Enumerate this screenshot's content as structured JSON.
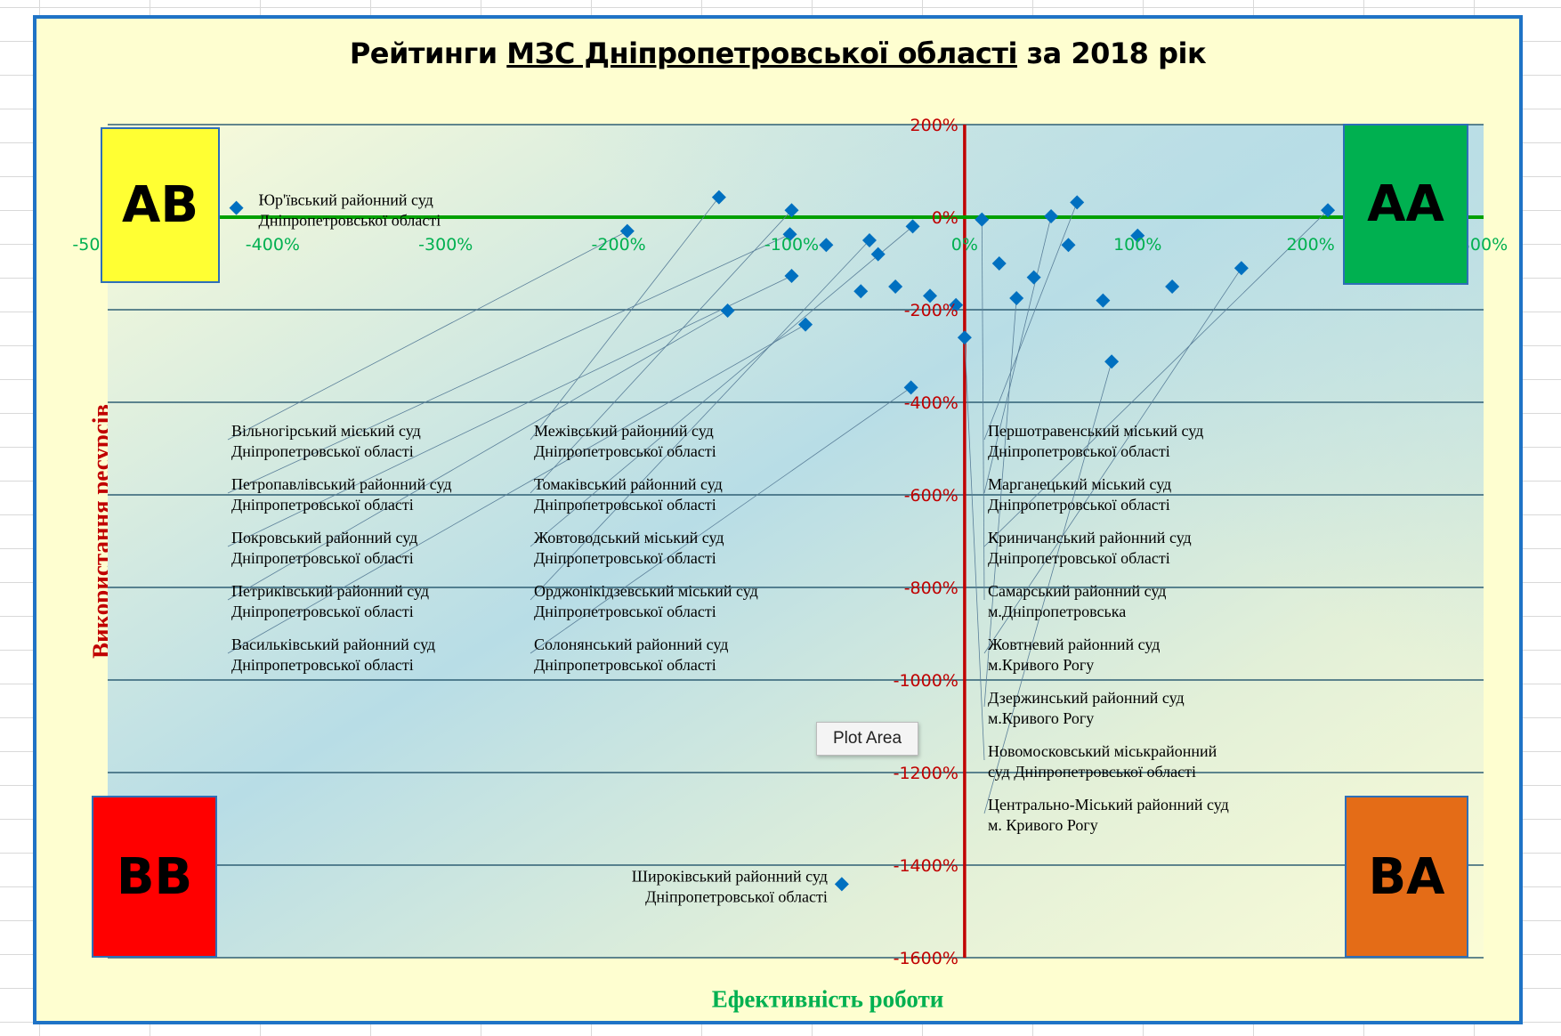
{
  "chart_data": {
    "type": "scatter",
    "title_parts": [
      "Рейтинги ",
      "МЗС Дніпропетровської  області",
      " за 2018 рік"
    ],
    "xlabel": "Ефективність роботи",
    "ylabel": "Використання ресурсів",
    "xlim": [
      -500,
      300
    ],
    "ylim": [
      -1600,
      200
    ],
    "x_ticks": [
      "-500%",
      "-400%",
      "-300%",
      "-200%",
      "-100%",
      "0%",
      "100%",
      "200%",
      "300%"
    ],
    "x_tick_values": [
      -500,
      -400,
      -300,
      -200,
      -100,
      0,
      100,
      200,
      300
    ],
    "y_ticks": [
      "200%",
      "0%",
      "-200%",
      "-400%",
      "-600%",
      "-800%",
      "-1000%",
      "-1200%",
      "-1400%",
      "-1600%"
    ],
    "y_tick_values": [
      200,
      0,
      -200,
      -400,
      -600,
      -800,
      -1000,
      -1200,
      -1400,
      -1600
    ],
    "grid": "horizontal",
    "colors": {
      "marker": "#0070c0",
      "x_axis": "#00a000",
      "y_axis": "#c00000",
      "x_tick": "#00b050",
      "y_tick": "#c00000"
    },
    "quadrants": [
      {
        "label": "AB",
        "color": "#ffff33"
      },
      {
        "label": "AA",
        "color": "#00b050"
      },
      {
        "label": "BB",
        "color": "#ff0000"
      },
      {
        "label": "BA",
        "color": "#e46c17"
      }
    ],
    "points": [
      {
        "x": -421,
        "y": 20,
        "label": [
          "Юр'ївський районний суд",
          "Дніпропетровської області"
        ]
      },
      {
        "x": -142,
        "y": 43,
        "label": [
          "Межівський районний суд",
          "Дніпропетровської області"
        ]
      },
      {
        "x": -100,
        "y": 15,
        "label": [
          "Томаківський районний суд",
          "Дніпропетровської області"
        ]
      },
      {
        "x": -195,
        "y": -30,
        "label": [
          "Вільногірський міський суд",
          "Дніпропетровської області"
        ]
      },
      {
        "x": -101,
        "y": -37,
        "label": [
          "Петропавлівський районний суд",
          "Дніпропетровської області"
        ]
      },
      {
        "x": -100,
        "y": -127,
        "label": [
          "Покровський районний суд",
          "Дніпропетровської області"
        ]
      },
      {
        "x": -137,
        "y": -202,
        "label": [
          "Петриківський районний суд",
          "Дніпропетровської області"
        ]
      },
      {
        "x": -92,
        "y": -232,
        "label": [
          "Васильківський районний суд",
          "Дніпропетровської області"
        ]
      },
      {
        "x": -31,
        "y": -368,
        "label": [
          "Солонянський районний суд",
          "Дніпропетровської області"
        ]
      },
      {
        "x": -71,
        "y": -1441,
        "label": [
          "Широківський районний суд",
          "Дніпропетровської області"
        ]
      },
      {
        "x": 85,
        "y": -312,
        "label": [
          "Центрально-Міський районний суд",
          "м. Кривого Рогу"
        ]
      },
      {
        "x": 65,
        "y": 32,
        "label": [
          "Першотравенський міський суд",
          "Дніпропетровської області"
        ]
      },
      {
        "x": 210,
        "y": 15,
        "label": [
          "Криничанський районний суд",
          "Дніпропетровської області"
        ]
      },
      {
        "x": 50,
        "y": 2,
        "label": [
          "Марганецький міський суд",
          "Дніпропетровської області"
        ]
      },
      {
        "x": 10,
        "y": -5,
        "label": [
          "Самарський районний суд",
          "м.Дніпропетровська"
        ]
      },
      {
        "x": -30,
        "y": -20,
        "label": [
          "Жовтоводський міський суд",
          "Дніпропетровської області"
        ]
      },
      {
        "x": -55,
        "y": -50,
        "label": [
          "Орджонікідзевський міський суд",
          "Дніпропетровської області"
        ]
      },
      {
        "x": 0,
        "y": -260,
        "label": [
          "Новомосковський міськрайонний",
          "суд Дніпропетровської області"
        ]
      },
      {
        "x": 30,
        "y": -175,
        "label": [
          "Дзержинський районний суд",
          "м.Кривого Рогу"
        ]
      },
      {
        "x": 160,
        "y": -110,
        "label": [
          "Жовтневий районний суд",
          "м.Кривого Рогу"
        ]
      },
      {
        "x": -50,
        "y": -80,
        "label": []
      },
      {
        "x": -80,
        "y": -60,
        "label": []
      },
      {
        "x": -40,
        "y": -150,
        "label": []
      },
      {
        "x": -20,
        "y": -170,
        "label": []
      },
      {
        "x": 20,
        "y": -100,
        "label": []
      },
      {
        "x": 40,
        "y": -130,
        "label": []
      },
      {
        "x": 60,
        "y": -60,
        "label": []
      },
      {
        "x": 100,
        "y": -40,
        "label": []
      },
      {
        "x": 120,
        "y": -150,
        "label": []
      },
      {
        "x": 80,
        "y": -180,
        "label": []
      },
      {
        "x": -60,
        "y": -160,
        "label": []
      },
      {
        "x": -5,
        "y": -190,
        "label": []
      }
    ]
  },
  "tooltip": "Plot Area"
}
